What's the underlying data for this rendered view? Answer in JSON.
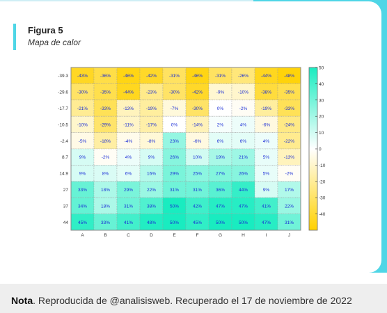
{
  "figure": {
    "label": "Figura 5",
    "subtitle": "Mapa de calor"
  },
  "note": {
    "label": "Nota",
    "text": ". Reproducida de @analisisweb. Recuperado el 17 de noviembre de 2022"
  },
  "colors": {
    "accent": "#4fd6e6",
    "positive_max": "#19ecc0",
    "negative_max": "#ffd100",
    "neutral": "#ffffff",
    "cell_text": "#1a2dd6"
  },
  "chart_data": {
    "type": "heatmap",
    "x_categories": [
      "A",
      "B",
      "C",
      "D",
      "E",
      "F",
      "G",
      "H",
      "I",
      "J"
    ],
    "y_categories": [
      "-39.3",
      "-29.6",
      "-17.7",
      "-10.5",
      "-2.4",
      "8.7",
      "14.9",
      "27",
      "37",
      "44"
    ],
    "values": [
      [
        -43,
        -36,
        -46,
        -42,
        -31,
        -46,
        -31,
        -26,
        -44,
        -48
      ],
      [
        -30,
        -35,
        -44,
        -23,
        -30,
        -42,
        -9,
        -10,
        -38,
        -35
      ],
      [
        -21,
        -33,
        -13,
        -19,
        -7,
        -30,
        0,
        -2,
        -19,
        -33
      ],
      [
        -10,
        -29,
        -11,
        -17,
        0,
        -14,
        2,
        4,
        -6,
        -24
      ],
      [
        -5,
        -18,
        -4,
        -8,
        23,
        -6,
        6,
        6,
        4,
        -22
      ],
      [
        9,
        -2,
        4,
        9,
        26,
        10,
        19,
        21,
        5,
        -13
      ],
      [
        9,
        8,
        6,
        16,
        29,
        25,
        27,
        26,
        5,
        -2
      ],
      [
        33,
        18,
        29,
        22,
        31,
        31,
        36,
        44,
        9,
        17
      ],
      [
        34,
        18,
        31,
        38,
        50,
        42,
        47,
        47,
        41,
        22
      ],
      [
        45,
        33,
        41,
        48,
        50,
        45,
        50,
        50,
        47,
        31
      ]
    ],
    "value_suffix": "%",
    "colorbar": {
      "range": [
        -50,
        50
      ],
      "ticks": [
        50,
        40,
        30,
        20,
        10,
        0,
        -10,
        -20,
        -30,
        -40
      ]
    }
  }
}
